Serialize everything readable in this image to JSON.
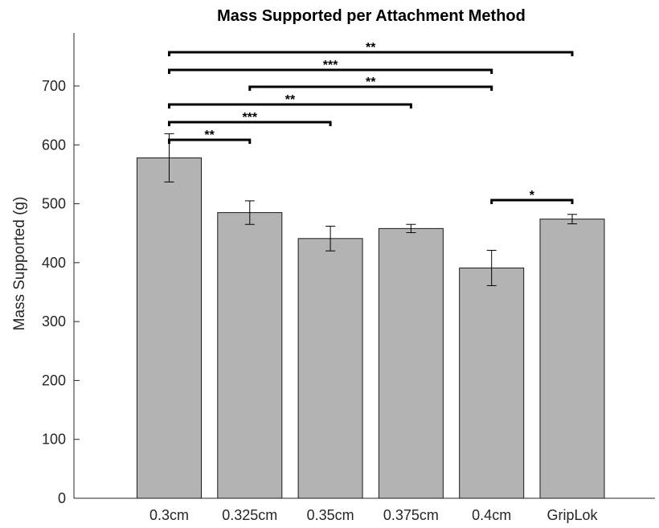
{
  "chart_data": {
    "type": "bar",
    "title": "Mass Supported per Attachment Method",
    "xlabel": "",
    "ylabel": "Mass Supported (g)",
    "categories": [
      "0.3cm",
      "0.325cm",
      "0.35cm",
      "0.375cm",
      "0.4cm",
      "GripLok"
    ],
    "values": [
      578,
      485,
      441,
      458,
      391,
      474
    ],
    "errors": [
      41,
      20,
      21,
      7,
      30,
      8
    ],
    "ylim": [
      0,
      790
    ],
    "yticks": [
      0,
      100,
      200,
      300,
      400,
      500,
      600,
      700
    ],
    "grid": false,
    "bar_color": "#b3b3b3",
    "significance": [
      {
        "from": "0.3cm",
        "to": "GripLok",
        "label": "**"
      },
      {
        "from": "0.3cm",
        "to": "0.4cm",
        "label": "***"
      },
      {
        "from": "0.325cm",
        "to": "0.4cm",
        "label": "**"
      },
      {
        "from": "0.3cm",
        "to": "0.375cm",
        "label": "**"
      },
      {
        "from": "0.3cm",
        "to": "0.35cm",
        "label": "***"
      },
      {
        "from": "0.3cm",
        "to": "0.325cm",
        "label": "**"
      },
      {
        "from": "0.4cm",
        "to": "GripLok",
        "label": "*"
      }
    ]
  }
}
